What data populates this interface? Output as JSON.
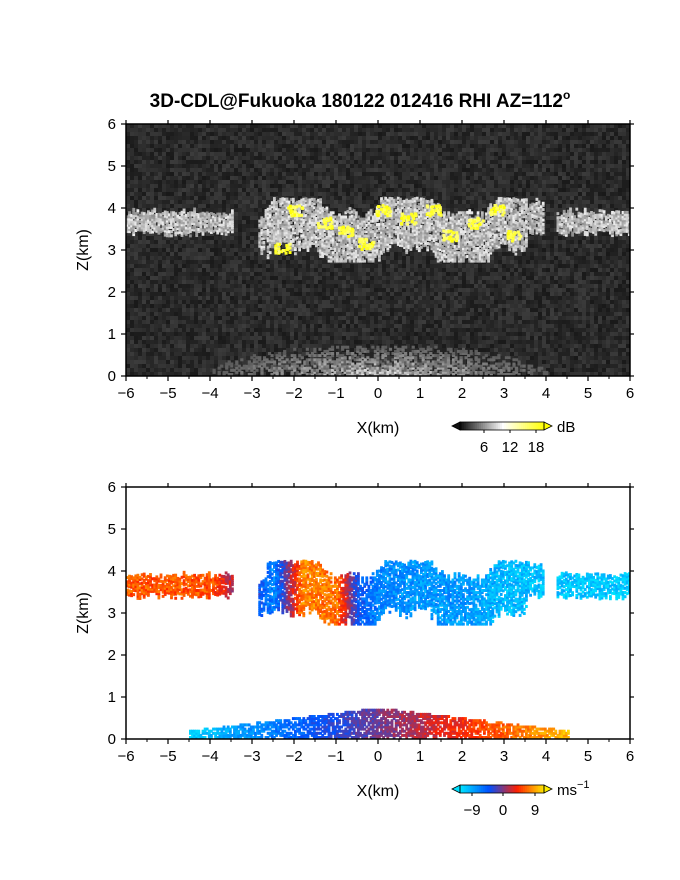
{
  "title": "3D-CDL@Fukuoka 180122 012416 RHI AZ=112",
  "title_degree": "o",
  "chart_data": [
    {
      "type": "heatmap",
      "panel": "reflectivity",
      "xlabel": "X(km)",
      "ylabel": "Z(km)",
      "xlim": [
        -6,
        6
      ],
      "ylim": [
        0,
        6
      ],
      "xticks": [
        "-6",
        "-5",
        "-4",
        "-3",
        "-2",
        "-1",
        "0",
        "1",
        "2",
        "3",
        "4",
        "5",
        "6"
      ],
      "yticks": [
        "0",
        "1",
        "2",
        "3",
        "4",
        "5",
        "6"
      ],
      "colorbar": {
        "unit": "dB",
        "ticks": [
          "6",
          "12",
          "18"
        ],
        "range": [
          0,
          20
        ],
        "colors": [
          "#111111",
          "#ffffff",
          "#ffff00"
        ]
      },
      "background": "#262626",
      "echo_layer": {
        "x_range": [
          -6,
          6
        ],
        "z_range": [
          2.7,
          4.2
        ],
        "gaps_x": [
          [
            -3.5,
            -2.9
          ],
          [
            3.9,
            4.2
          ]
        ]
      },
      "near_ground_clutter": {
        "x_range": [
          -4,
          4
        ],
        "z_range": [
          0,
          0.7
        ]
      },
      "strong_spots": [
        {
          "x": -2.0,
          "z": 3.9
        },
        {
          "x": -1.3,
          "z": 3.6
        },
        {
          "x": -0.8,
          "z": 3.4
        },
        {
          "x": -0.3,
          "z": 3.1
        },
        {
          "x": 0.1,
          "z": 3.9
        },
        {
          "x": 0.7,
          "z": 3.7
        },
        {
          "x": 1.3,
          "z": 3.9
        },
        {
          "x": 1.7,
          "z": 3.3
        },
        {
          "x": 2.3,
          "z": 3.6
        },
        {
          "x": 2.8,
          "z": 3.9
        },
        {
          "x": 3.2,
          "z": 3.3
        },
        {
          "x": -2.3,
          "z": 3.0
        }
      ]
    },
    {
      "type": "heatmap",
      "panel": "doppler_velocity",
      "xlabel": "X(km)",
      "ylabel": "Z(km)",
      "xlim": [
        -6,
        6
      ],
      "ylim": [
        0,
        6
      ],
      "xticks": [
        "-6",
        "-5",
        "-4",
        "-3",
        "-2",
        "-1",
        "0",
        "1",
        "2",
        "3",
        "4",
        "5",
        "6"
      ],
      "yticks": [
        "0",
        "1",
        "2",
        "3",
        "4",
        "5",
        "6"
      ],
      "colorbar": {
        "unit": "ms",
        "unit_exp": "−1",
        "ticks": [
          "−9",
          "0",
          "9"
        ],
        "range": [
          -12,
          12
        ],
        "colors": [
          "#00e0ff",
          "#0050ff",
          "#ff2000",
          "#ffee00"
        ]
      },
      "background": "#ffffff",
      "echo_layer": {
        "x_range": [
          -6,
          6
        ],
        "z_range": [
          2.7,
          4.2
        ],
        "gaps_x": [
          [
            -3.5,
            -2.9
          ],
          [
            3.9,
            4.2
          ]
        ]
      },
      "velocity_profile": [
        {
          "x": -6.0,
          "v": 6
        },
        {
          "x": -4.0,
          "v": 6
        },
        {
          "x": -2.5,
          "v": -7
        },
        {
          "x": -1.8,
          "v": 8
        },
        {
          "x": -1.0,
          "v": 7
        },
        {
          "x": -0.5,
          "v": -4
        },
        {
          "x": 0.0,
          "v": -7
        },
        {
          "x": 1.0,
          "v": -8
        },
        {
          "x": 2.0,
          "v": -8
        },
        {
          "x": 3.0,
          "v": -10
        },
        {
          "x": 6.0,
          "v": -11
        }
      ],
      "near_ground_layer": {
        "x_range": [
          -4.5,
          4.5
        ],
        "z_range": [
          0,
          0.9
        ],
        "v_at_left": -11,
        "v_at_right": 10
      }
    }
  ]
}
